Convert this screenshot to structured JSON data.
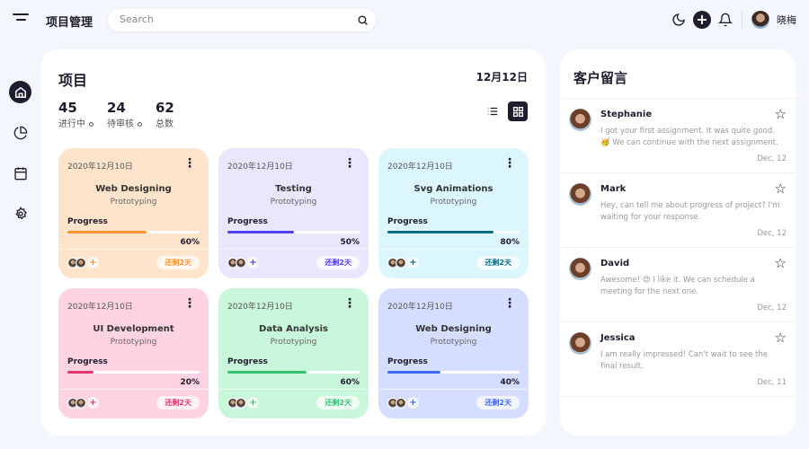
{
  "header": {
    "title": "项目管理",
    "search_placeholder": "Search",
    "user_name": "晓梅",
    "icons": [
      "menu-icon",
      "search-icon",
      "moon-icon",
      "plus-icon",
      "bell-icon"
    ]
  },
  "sidebar": {
    "items": [
      {
        "name": "home",
        "active": true
      },
      {
        "name": "chart"
      },
      {
        "name": "calendar"
      },
      {
        "name": "settings"
      }
    ]
  },
  "projects": {
    "title": "项目",
    "date": "12月12日",
    "stats": [
      {
        "value": "45",
        "label": "进行中"
      },
      {
        "value": "24",
        "label": "待审核"
      },
      {
        "value": "62",
        "label": "总数"
      }
    ],
    "progress_label": "Progress",
    "cards": [
      {
        "date": "2020年12月10日",
        "name": "Web Designing",
        "sub": "Prototyping",
        "progress": 60,
        "pct": "60%",
        "days": "还剩2天",
        "bg": "#fee4cb",
        "color": "#ff942e"
      },
      {
        "date": "2020年12月10日",
        "name": "Testing",
        "sub": "Prototyping",
        "progress": 50,
        "pct": "50%",
        "days": "还剩2天",
        "bg": "#e9e7fd",
        "color": "#4f3ff0"
      },
      {
        "date": "2020年12月10日",
        "name": "Svg Animations",
        "sub": "Prototyping",
        "progress": 80,
        "pct": "80%",
        "days": "还剩2天",
        "bg": "#dbf6fd",
        "color": "#096c86"
      },
      {
        "date": "2020年12月10日",
        "name": "UI Development",
        "sub": "Prototyping",
        "progress": 20,
        "pct": "20%",
        "days": "还剩2天",
        "bg": "#ffd3e2",
        "color": "#df3670"
      },
      {
        "date": "2020年12月10日",
        "name": "Data Analysis",
        "sub": "Prototyping",
        "progress": 60,
        "pct": "60%",
        "days": "还剩2天",
        "bg": "#c8f7dc",
        "color": "#34c471"
      },
      {
        "date": "2020年12月10日",
        "name": "Web Designing",
        "sub": "Prototyping",
        "progress": 40,
        "pct": "40%",
        "days": "还剩2天",
        "bg": "#d5deff",
        "color": "#4067f9"
      }
    ]
  },
  "messages": {
    "title": "客户留言",
    "items": [
      {
        "name": "Stephanie",
        "text": "I got your first assignment. It was quite good. 🥳 We can continue with the next assignment.",
        "date": "Dec, 12"
      },
      {
        "name": "Mark",
        "text": "Hey, can tell me about progress of project? I'm waiting for your response.",
        "date": "Dec, 12"
      },
      {
        "name": "David",
        "text": "Awesome! 😍 I like it. We can schedule a meeting for the next one.",
        "date": "Dec, 12"
      },
      {
        "name": "Jessica",
        "text": "I am really impressed! Can't wait to see the final result.",
        "date": "Dec, 11"
      }
    ]
  }
}
